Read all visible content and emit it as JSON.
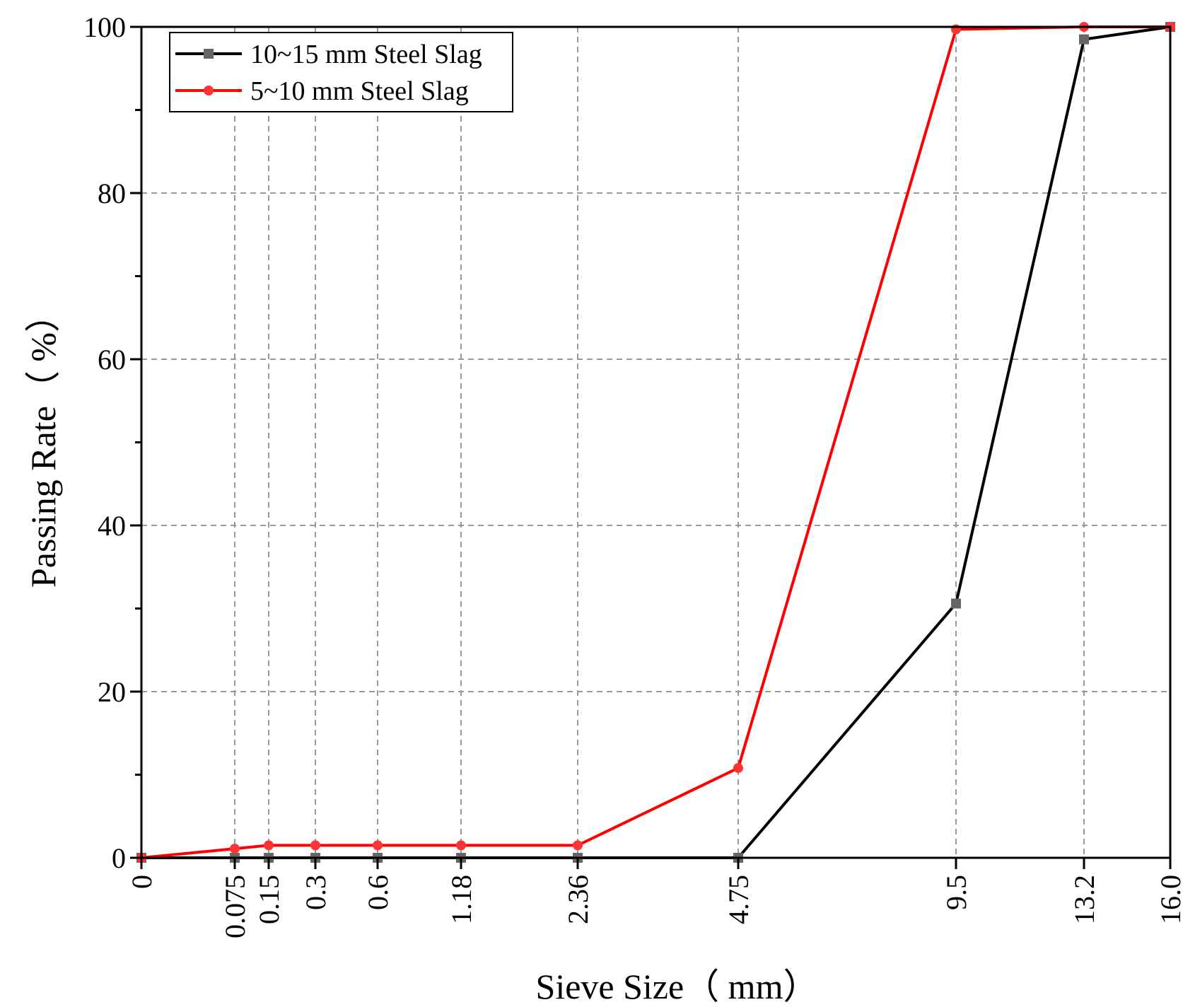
{
  "chart_data": {
    "type": "line",
    "xlabel": "Sieve Size（ mm）",
    "ylabel": "Passing Rate（ %）",
    "x_axis_scale": "categorical-positioned",
    "x": [
      "0",
      "0.075",
      "0.15",
      "0.3",
      "0.6",
      "1.18",
      "2.36",
      "4.75",
      "9.5",
      "13.2",
      "16.0"
    ],
    "ylim": [
      0,
      100
    ],
    "yticks": [
      "0",
      "20",
      "40",
      "60",
      "80",
      "100"
    ],
    "grid": true,
    "legend_position": "top-left",
    "series": [
      {
        "name": "10~15 mm Steel Slag",
        "color": "#000000",
        "marker": "square",
        "marker_color": "#666666",
        "values": [
          0,
          0,
          0,
          0,
          0,
          0,
          0,
          0,
          30.6,
          98.5,
          100
        ]
      },
      {
        "name": "5~10 mm Steel Slag",
        "color": "#ff0000",
        "marker": "circle",
        "marker_color": "#ff3333",
        "values": [
          0,
          1.1,
          1.5,
          1.5,
          1.5,
          1.5,
          1.5,
          10.8,
          99.7,
          100,
          100
        ]
      }
    ]
  }
}
